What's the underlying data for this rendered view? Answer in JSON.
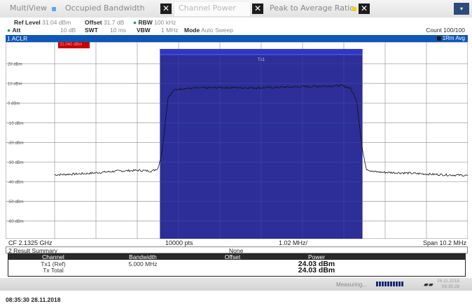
{
  "tabs": {
    "multiview": "MultiView",
    "occupied_bandwidth": "Occupied Bandwidth",
    "channel_power": "Channel Power",
    "peak_to_average": "Peak to Average Ratio",
    "close_glyph": "✕",
    "menu_glyph": "▾"
  },
  "settings": {
    "ref_level_label": "Ref Level",
    "ref_level": "31.04 dBm",
    "offset_label": "Offset",
    "offset": "31.7 dB",
    "rbw_label": "RBW",
    "rbw": "100 kHz",
    "att_label": "Att",
    "att": "10 dB",
    "swt_label": "SWT",
    "swt": "10 ms",
    "vbw_label": "VBW",
    "vbw": "1 MHz",
    "mode_label": "Mode",
    "mode": "Auto Sweep",
    "count": "Count 100/100"
  },
  "window": {
    "title": "1 ACLR",
    "trace": "1Rm Avg",
    "marker": "31.040 dBm",
    "channel_label": "Tx1"
  },
  "axis": {
    "cf": "CF 2.1325 GHz",
    "points": "10000 pts",
    "div": "1.02 MHz/",
    "span": "Span 10.2 MHz"
  },
  "chart_data": {
    "type": "line",
    "y_ticks": [
      "20 dBm",
      "10 dBm",
      "0 dBm",
      "-10 dBm",
      "-20 dBm",
      "-30 dBm",
      "-40 dBm",
      "-50 dBm",
      "-60 dBm"
    ],
    "ylim": [
      -69,
      31.04
    ],
    "xlim": [
      -5.1,
      5.1
    ],
    "x_unit": "MHz offset from CF",
    "channel_band": [
      -2.5,
      2.5
    ],
    "series": [
      {
        "points": [
          [
            -5.1,
            -36.5
          ],
          [
            -4.3,
            -35.8
          ],
          [
            -3.5,
            -34.5
          ],
          [
            -3.0,
            -34.2
          ],
          [
            -2.7,
            -34.6
          ],
          [
            -2.55,
            -33.2
          ],
          [
            -2.45,
            -25
          ],
          [
            -2.3,
            3
          ],
          [
            -2.15,
            6.5
          ],
          [
            -2.0,
            7.3
          ],
          [
            -1.0,
            7.9
          ],
          [
            0,
            7.8
          ],
          [
            1.0,
            8.3
          ],
          [
            2.0,
            8.9
          ],
          [
            2.2,
            7.5
          ],
          [
            2.35,
            2
          ],
          [
            2.5,
            -24
          ],
          [
            2.6,
            -33.5
          ],
          [
            2.75,
            -34.8
          ],
          [
            3.0,
            -35.2
          ],
          [
            3.5,
            -35.5
          ],
          [
            4.3,
            -36.3
          ],
          [
            5.1,
            -36.8
          ]
        ]
      }
    ]
  },
  "result_summary": {
    "title": "2 Result Summary",
    "status": "None",
    "headers": [
      "Channel",
      "Bandwidth",
      "Offset",
      "Power"
    ],
    "rows": [
      {
        "channel": "Tx1 (Ref)",
        "bandwidth": "5.000 MHz",
        "offset": "",
        "power": "24.03 dBm"
      },
      {
        "channel": "Tx Total",
        "bandwidth": "",
        "offset": "",
        "power": "24.03 dBm"
      }
    ]
  },
  "status": {
    "measuring": "Measuring...",
    "progress": 1.0,
    "date": "28.11.2018",
    "time": "08:35:29"
  },
  "timestamp": "08:35:30  28.11.2018",
  "colors": {
    "band": "#2d2e98",
    "band_header": "#2f36c8",
    "title_bar": "#0d57b8",
    "trace": "#111111"
  }
}
